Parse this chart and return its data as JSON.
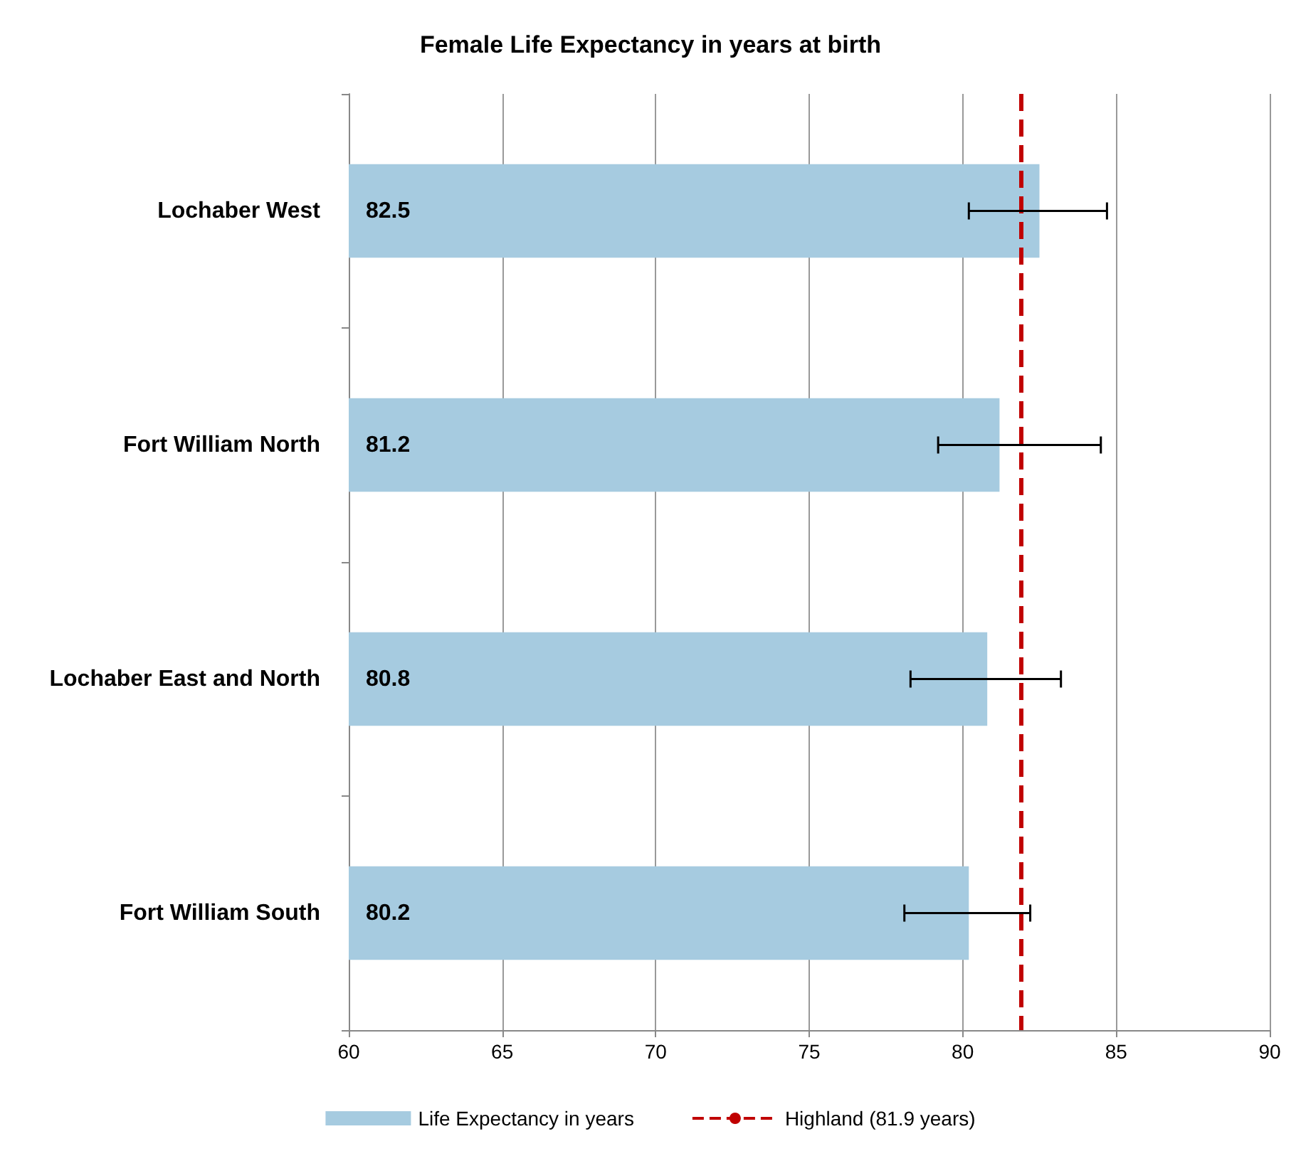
{
  "chart_data": {
    "type": "bar",
    "orientation": "horizontal",
    "title": "Female Life Expectancy in years at birth",
    "categories": [
      "Lochaber West",
      "Fort William North",
      "Lochaber East and North",
      "Fort William South"
    ],
    "series": [
      {
        "name": "Life Expectancy in years",
        "color": "#a6cbe0",
        "values": [
          82.5,
          81.2,
          80.8,
          80.2
        ],
        "errors": [
          [
            80.2,
            84.7
          ],
          [
            79.2,
            84.5
          ],
          [
            78.3,
            83.2
          ],
          [
            78.1,
            82.2
          ]
        ]
      }
    ],
    "data_labels": true,
    "xlim": [
      60,
      90
    ],
    "xticks": [
      60,
      65,
      70,
      75,
      80,
      85,
      90
    ],
    "ref_lines": [
      {
        "axis": "x",
        "value": 81.9,
        "label": "Highland (81.9 years)",
        "color": "#c00000",
        "line_style": "dashed"
      }
    ],
    "grid": "x",
    "legend": "bottom"
  }
}
